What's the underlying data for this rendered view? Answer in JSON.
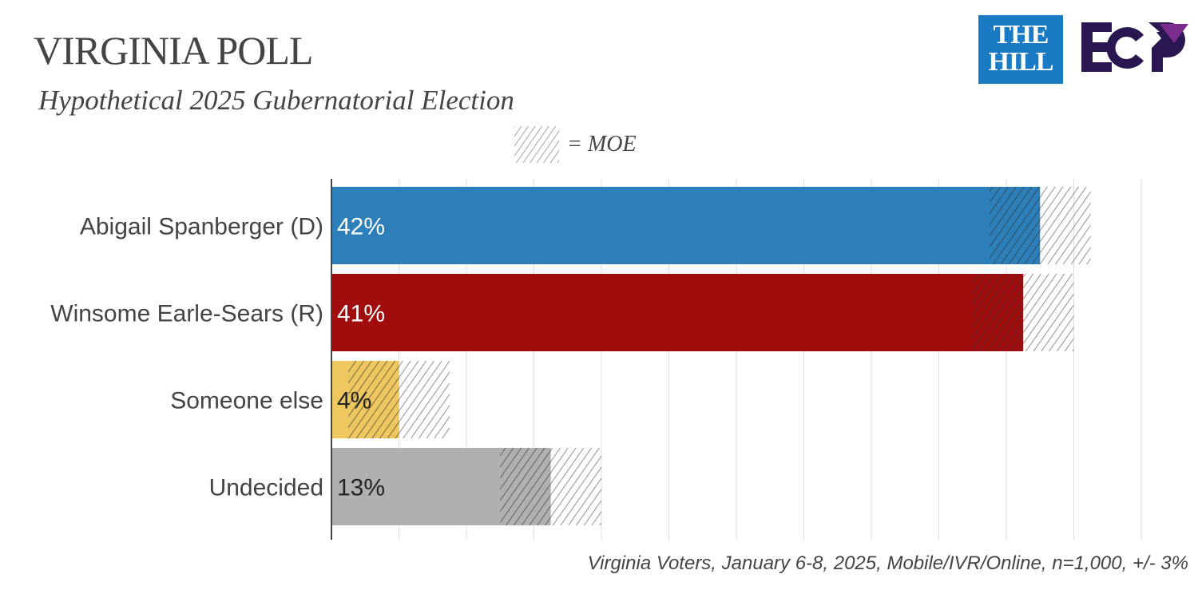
{
  "header": {
    "title": "VIRGINIA POLL",
    "subtitle": "Hypothetical 2025 Gubernatorial Election"
  },
  "logos": {
    "hill": [
      "THE",
      "HILL"
    ],
    "ecp": "ECP"
  },
  "legend": {
    "label": "= MOE"
  },
  "footer": "Virginia Voters, January 6-8, 2025, Mobile/IVR/Online, n=1,000, +/- 3%",
  "chart_data": {
    "type": "bar",
    "orientation": "horizontal",
    "title": "VIRGINIA POLL",
    "subtitle": "Hypothetical 2025 Gubernatorial Election",
    "categories": [
      "Abigail Spanberger (D)",
      "Winsome Earle-Sears (R)",
      "Someone else",
      "Undecided"
    ],
    "values": [
      42,
      41,
      4,
      13
    ],
    "labels": [
      "42%",
      "41%",
      "4%",
      "13%"
    ],
    "colors": [
      "#2c7fb8",
      "#a10d0d",
      "#eec75f",
      "#b0b0b0"
    ],
    "label_colors": [
      "#ffffff",
      "#ffffff",
      "#222222",
      "#222222"
    ],
    "moe": 3,
    "xlim": [
      0,
      48
    ],
    "grid_step": 4,
    "grid": true,
    "legend": "top-center"
  }
}
